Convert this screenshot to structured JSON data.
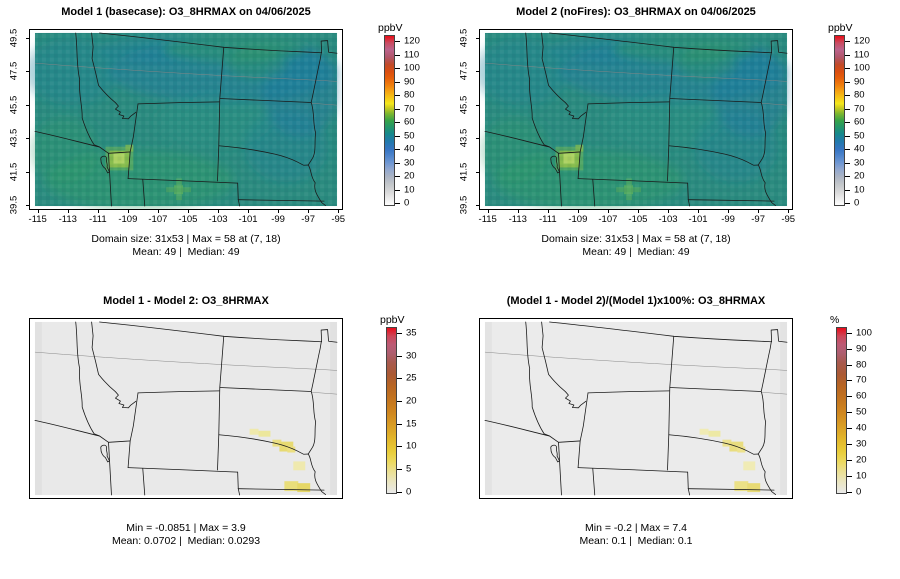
{
  "panels": [
    {
      "title": "Model 1 (basecase): O3_8HRMAX on 04/06/2025",
      "stats_line1": "Domain size: 31x53 | Max = 58 at (7, 18)",
      "stats_line2": "Mean: 49 |  Median: 49"
    },
    {
      "title": "Model 2 (noFires): O3_8HRMAX on 04/06/2025",
      "stats_line1": "Domain size: 31x53 | Max = 58 at (7, 18)",
      "stats_line2": "Mean: 49 |  Median: 49"
    },
    {
      "title": "Model 1 - Model 2: O3_8HRMAX",
      "stats_line1": "Min = -0.0851 | Max = 3.9",
      "stats_line2": "Mean: 0.0702 |  Median: 0.0293"
    },
    {
      "title": "(Model 1 - Model 2)/(Model 1)x100%: O3_8HRMAX",
      "stats_line1": "Min = -0.2 | Max = 7.4",
      "stats_line2": "Mean: 0.1 |  Median: 0.1"
    }
  ],
  "axes": {
    "x_tick_labels": [
      "-115",
      "-113",
      "-111",
      "-109",
      "-107",
      "-105",
      "-103",
      "-101",
      "-99",
      "-97",
      "-95"
    ],
    "y_tick_labels": [
      "39.5",
      "41.5",
      "43.5",
      "45.5",
      "47.5",
      "49.5"
    ]
  },
  "colorbars": [
    {
      "unit": "ppbV",
      "tick_labels": [
        "0",
        "10",
        "20",
        "30",
        "40",
        "50",
        "60",
        "70",
        "80",
        "90",
        "100",
        "110",
        "120"
      ]
    },
    {
      "unit": "ppbV",
      "tick_labels": [
        "0",
        "10",
        "20",
        "30",
        "40",
        "50",
        "60",
        "70",
        "80",
        "90",
        "100",
        "110",
        "120"
      ]
    },
    {
      "unit": "ppbV",
      "tick_labels": [
        "0",
        "5",
        "10",
        "15",
        "20",
        "25",
        "30",
        "35"
      ]
    },
    {
      "unit": "%",
      "tick_labels": [
        "0",
        "10",
        "20",
        "30",
        "40",
        "50",
        "60",
        "70",
        "80",
        "90",
        "100"
      ]
    }
  ],
  "colors": {
    "concentration_base": "#2b8b7f",
    "difference_base": "#e9e9e9",
    "scale_low": "#ffffff",
    "scale_yellow": "#f3e81c",
    "scale_high_red": "#e90c17"
  },
  "chart_data": [
    {
      "type": "heatmap",
      "panel": "top-left",
      "title": "Model 1 (basecase): O3_8HRMAX on 04/06/2025",
      "variable": "O3_8HRMAX",
      "model_label": "Model 1 (basecase)",
      "date": "04/06/2025",
      "units": "ppbV",
      "colorbar_range": [
        0,
        120
      ],
      "colorbar_ticks": [
        0,
        10,
        20,
        30,
        40,
        50,
        60,
        70,
        80,
        90,
        100,
        110,
        120
      ],
      "x_ticks": [
        -115,
        -113,
        -111,
        -109,
        -107,
        -105,
        -103,
        -101,
        -99,
        -97,
        -95
      ],
      "y_ticks": [
        39.5,
        41.5,
        43.5,
        45.5,
        47.5,
        49.5
      ],
      "domain_size": "31x53",
      "max": 58,
      "max_location_grid": [
        7,
        18
      ],
      "mean": 49,
      "median": 49,
      "legend_position": "right",
      "field_description": "8-hr max ozone mostly 45-55 ppbV (teal/green) over MT, ID, WY, UT, CO, ND, SD, NE; bluer 40-45 over central Montana and eastern Dakotas; yellow-green maximum ~58 in northeastern Utah; small lighter-green spot in north-central Colorado"
    },
    {
      "type": "heatmap",
      "panel": "top-right",
      "title": "Model 2 (noFires): O3_8HRMAX on 04/06/2025",
      "variable": "O3_8HRMAX",
      "model_label": "Model 2 (noFires)",
      "date": "04/06/2025",
      "units": "ppbV",
      "colorbar_range": [
        0,
        120
      ],
      "colorbar_ticks": [
        0,
        10,
        20,
        30,
        40,
        50,
        60,
        70,
        80,
        90,
        100,
        110,
        120
      ],
      "x_ticks": [
        -115,
        -113,
        -111,
        -109,
        -107,
        -105,
        -103,
        -101,
        -99,
        -97,
        -95
      ],
      "y_ticks": [
        39.5,
        41.5,
        43.5,
        45.5,
        47.5,
        49.5
      ],
      "domain_size": "31x53",
      "max": 58,
      "max_location_grid": [
        7,
        18
      ],
      "mean": 49,
      "median": 49,
      "legend_position": "right",
      "field_description": "visually identical to Model 1 panel: 45-55 ppbV teal/green field with yellow-green maximum in northeastern Utah"
    },
    {
      "type": "heatmap",
      "panel": "bottom-left",
      "title": "Model 1 - Model 2: O3_8HRMAX",
      "variable": "O3_8HRMAX",
      "units": "ppbV",
      "colorbar_range": [
        0,
        35
      ],
      "colorbar_ticks": [
        0,
        5,
        10,
        15,
        20,
        25,
        30,
        35
      ],
      "min": -0.0851,
      "max": 3.9,
      "mean": 0.0702,
      "median": 0.0293,
      "legend_position": "right",
      "field_description": "difference near 0 (light gray) everywhere; pale-yellow positive patches up to ~3.9 ppbV over southeastern Nebraska"
    },
    {
      "type": "heatmap",
      "panel": "bottom-right",
      "title": "(Model 1 - Model 2)/(Model 1)x100%: O3_8HRMAX",
      "variable": "O3_8HRMAX",
      "units": "%",
      "colorbar_range": [
        0,
        100
      ],
      "colorbar_ticks": [
        0,
        10,
        20,
        30,
        40,
        50,
        60,
        70,
        80,
        90,
        100
      ],
      "min": -0.2,
      "max": 7.4,
      "mean": 0.1,
      "median": 0.1,
      "legend_position": "right",
      "field_description": "percent difference near 0 everywhere; pale-yellow patches up to ~7.4% over southeastern Nebraska"
    }
  ]
}
